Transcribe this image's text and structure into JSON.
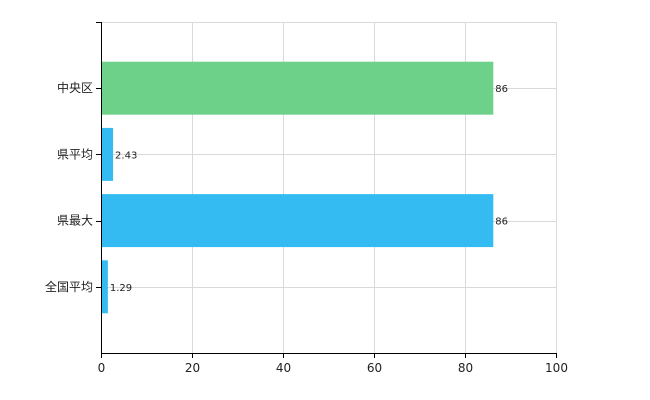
{
  "chart_data": {
    "type": "bar",
    "orientation": "horizontal",
    "categories": [
      "中央区",
      "県平均",
      "県最大",
      "全国平均"
    ],
    "values": [
      86,
      2.43,
      86,
      1.29
    ],
    "value_labels": [
      "86",
      "2.43",
      "86",
      "1.29"
    ],
    "colors": [
      "#6ed18a",
      "#33bbf2",
      "#33bbf2",
      "#33bbf2"
    ],
    "title": "",
    "xlabel": "",
    "ylabel": "",
    "xlim": [
      0,
      100
    ],
    "x_ticks": [
      0,
      20,
      40,
      60,
      80,
      100
    ],
    "grid": true,
    "legend": "none"
  }
}
